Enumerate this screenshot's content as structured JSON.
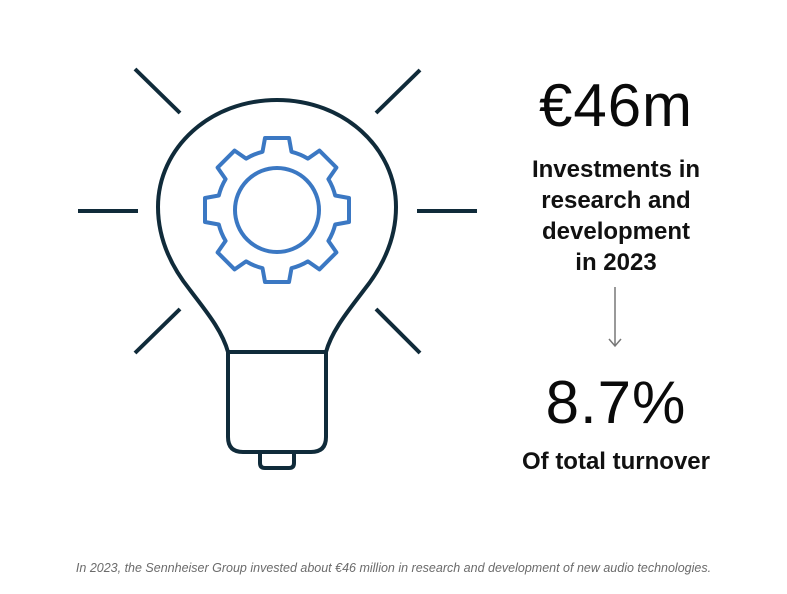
{
  "illustration": {
    "icon": "lightbulb-gear-icon",
    "outline_color": "#102b3a",
    "gear_color": "#3b78c3"
  },
  "stat_investment": {
    "value": "€46m",
    "desc_lines": [
      "Investments in",
      "research and",
      "development",
      "in 2023"
    ]
  },
  "arrow": {
    "icon": "arrow-down-icon",
    "color": "#777777"
  },
  "stat_turnover": {
    "value": "8.7%",
    "desc": "Of total turnover"
  },
  "caption": "In 2023, the Sennheiser Group invested about €46 million in research and development of new audio technologies."
}
